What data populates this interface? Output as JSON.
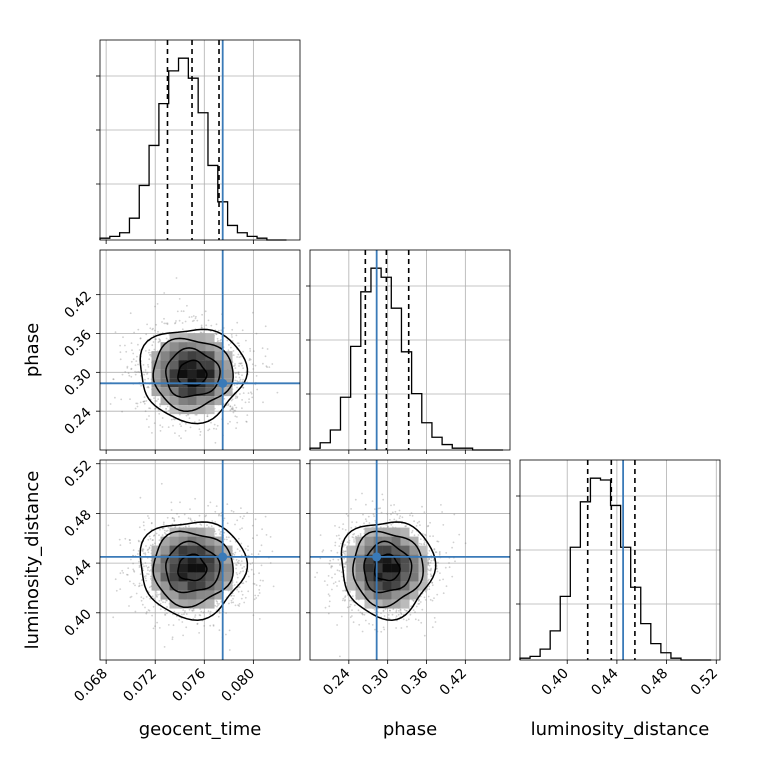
{
  "chart_data": {
    "type": "corner",
    "parameters": [
      "geocent_time",
      "phase",
      "luminosity_distance"
    ],
    "axis_labels": {
      "geocent_time": "geocent_time",
      "phase": "phase",
      "luminosity_distance": "luminosity_distance"
    },
    "truth_color": "#3a7ab8",
    "ranges": {
      "geocent_time": [
        0.0675,
        0.0838
      ],
      "phase": [
        0.18,
        0.489
      ],
      "luminosity_distance": [
        0.362,
        0.523
      ]
    },
    "ticks": {
      "geocent_time": [
        "0.068",
        "0.072",
        "0.076",
        "0.080"
      ],
      "phase": [
        "0.24",
        "0.30",
        "0.36",
        "0.42"
      ],
      "luminosity_distance": [
        "0.40",
        "0.44",
        "0.48",
        "0.52"
      ]
    },
    "truths": {
      "geocent_time": 0.0775,
      "phase": 0.283,
      "luminosity_distance": 0.445
    },
    "quantiles": {
      "geocent_time": [
        0.073,
        0.075,
        0.0772
      ],
      "phase": [
        0.2655,
        0.298,
        0.3325
      ],
      "luminosity_distance": [
        0.4165,
        0.4355,
        0.4545
      ]
    },
    "histograms": {
      "geocent_time": {
        "bin_edges": [
          0.0675,
          0.0683,
          0.0691,
          0.0699,
          0.0707,
          0.0715,
          0.0723,
          0.0731,
          0.0739,
          0.0747,
          0.0755,
          0.0763,
          0.0771,
          0.0779,
          0.0787,
          0.0795,
          0.0803,
          0.0811,
          0.0819,
          0.0827
        ],
        "counts": [
          1,
          2,
          4,
          12,
          30,
          52,
          75,
          93,
          100,
          89,
          70,
          41,
          21,
          8,
          4,
          2,
          1,
          0,
          0
        ]
      },
      "phase": {
        "bin_edges": [
          0.18,
          0.1957,
          0.2114,
          0.2271,
          0.2428,
          0.2585,
          0.2742,
          0.2899,
          0.3056,
          0.3213,
          0.337,
          0.3527,
          0.3684,
          0.3841,
          0.3998,
          0.4155,
          0.4312,
          0.4469,
          0.4626,
          0.4783
        ],
        "counts": [
          1,
          4,
          11,
          29,
          57,
          87,
          100,
          95,
          78,
          54,
          31,
          15,
          7,
          3,
          1,
          1,
          0,
          0,
          0
        ]
      },
      "luminosity_distance": {
        "bin_edges": [
          0.362,
          0.3701,
          0.3782,
          0.3863,
          0.3944,
          0.4025,
          0.4106,
          0.4187,
          0.4268,
          0.4349,
          0.443,
          0.4511,
          0.4592,
          0.4673,
          0.4754,
          0.4835,
          0.4916,
          0.4997,
          0.5078,
          0.5159
        ],
        "counts": [
          1,
          2,
          6,
          16,
          35,
          62,
          87,
          100,
          99,
          85,
          62,
          40,
          20,
          9,
          4,
          1,
          0,
          0,
          0
        ]
      }
    },
    "joint_distributions": [
      {
        "x": "geocent_time",
        "y": "phase",
        "center": [
          0.075,
          0.298
        ],
        "sigma": [
          0.0021,
          0.035
        ]
      },
      {
        "x": "geocent_time",
        "y": "luminosity_distance",
        "center": [
          0.075,
          0.436
        ],
        "sigma": [
          0.0021,
          0.019
        ]
      },
      {
        "x": "phase",
        "y": "luminosity_distance",
        "center": [
          0.299,
          0.436
        ],
        "sigma": [
          0.035,
          0.019
        ]
      }
    ],
    "grid": true
  }
}
